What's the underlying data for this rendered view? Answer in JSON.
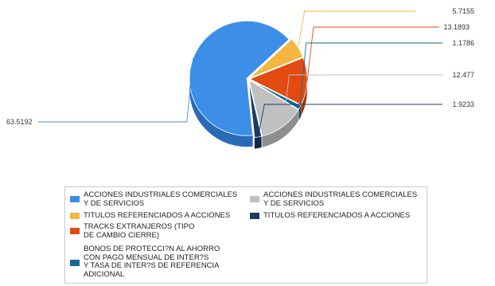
{
  "chart_data": {
    "type": "pie",
    "style": "3d-exploded",
    "series": [
      {
        "name": "ACCIONES INDUSTRIALES COMERCIALES\nY DE SERVICIOS",
        "value": 63.5192,
        "value_label": "63.5192",
        "color": "#3d8ee6",
        "side_color": "#2a6bb8"
      },
      {
        "name": "TITULOS REFERENCIADOS A ACCIONES",
        "value": 5.7155,
        "value_label": "5.7155",
        "color": "#f5b640",
        "side_color": "#c98f22"
      },
      {
        "name": "TRACKS EXTRANJEROS (TIPO\nDE CAMBIO CIERRE)",
        "value": 13.1893,
        "value_label": "13.1893",
        "color": "#e24a11",
        "side_color": "#a8360b"
      },
      {
        "name": "BONOS DE PROTECCI?N AL AHORRO\nCON PAGO MENSUAL DE INTER?S\nY TASA DE INTER?S DE REFERENCIA\nADICIONAL",
        "value": 1.1786,
        "value_label": "1.1786",
        "color": "#166a8e",
        "side_color": "#0e4a64"
      },
      {
        "name": "ACCIONES INDUSTRIALES COMERCIALES\nY DE SERVICIOS",
        "value": 12.477,
        "value_label": "12.477",
        "color": "#c0c0c0",
        "side_color": "#8e8e8e"
      },
      {
        "name": "TITULOS REFERENCIADOS A ACCIONES",
        "value": 1.9233,
        "value_label": "1.9233",
        "color": "#1c3a64",
        "side_color": "#122746"
      }
    ],
    "legend_order": [
      0,
      4,
      1,
      5,
      2,
      3
    ],
    "legend_placement": "bottom"
  }
}
